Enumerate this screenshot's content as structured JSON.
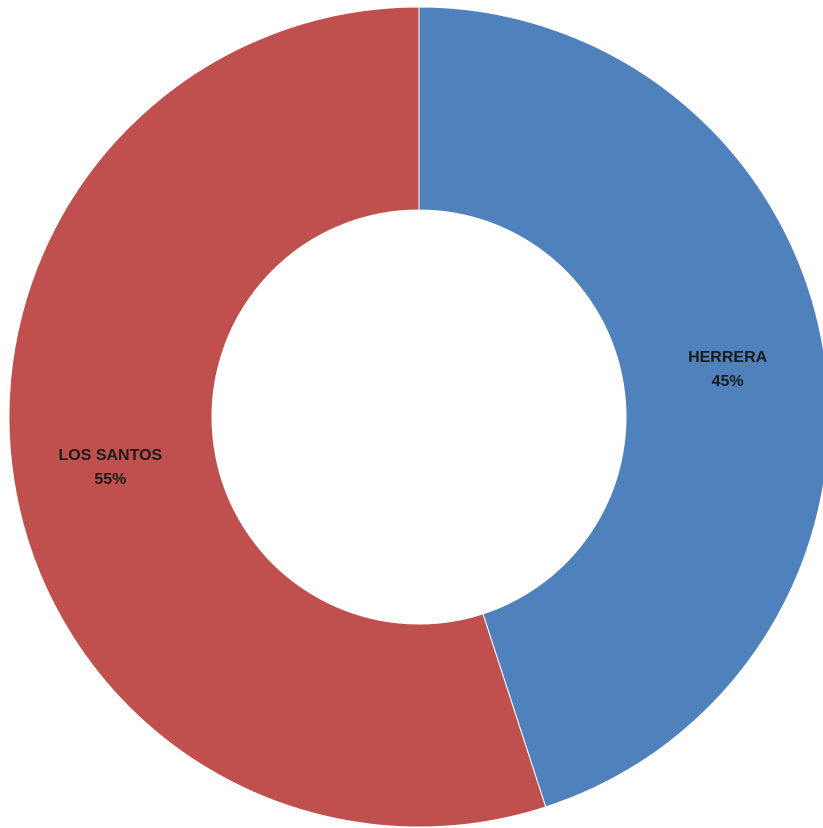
{
  "chart_data": {
    "type": "pie",
    "variant": "donut",
    "categories": [
      "HERRERA",
      "LOS SANTOS"
    ],
    "values": [
      45,
      55
    ],
    "unit": "%",
    "colors": [
      "#4F81BD",
      "#C0504D"
    ],
    "data_labels": [
      {
        "name": "HERRERA",
        "value": "45%"
      },
      {
        "name": "LOS SANTOS",
        "value": "55%"
      }
    ],
    "legend": "none",
    "start": "top",
    "direction": "clockwise"
  }
}
